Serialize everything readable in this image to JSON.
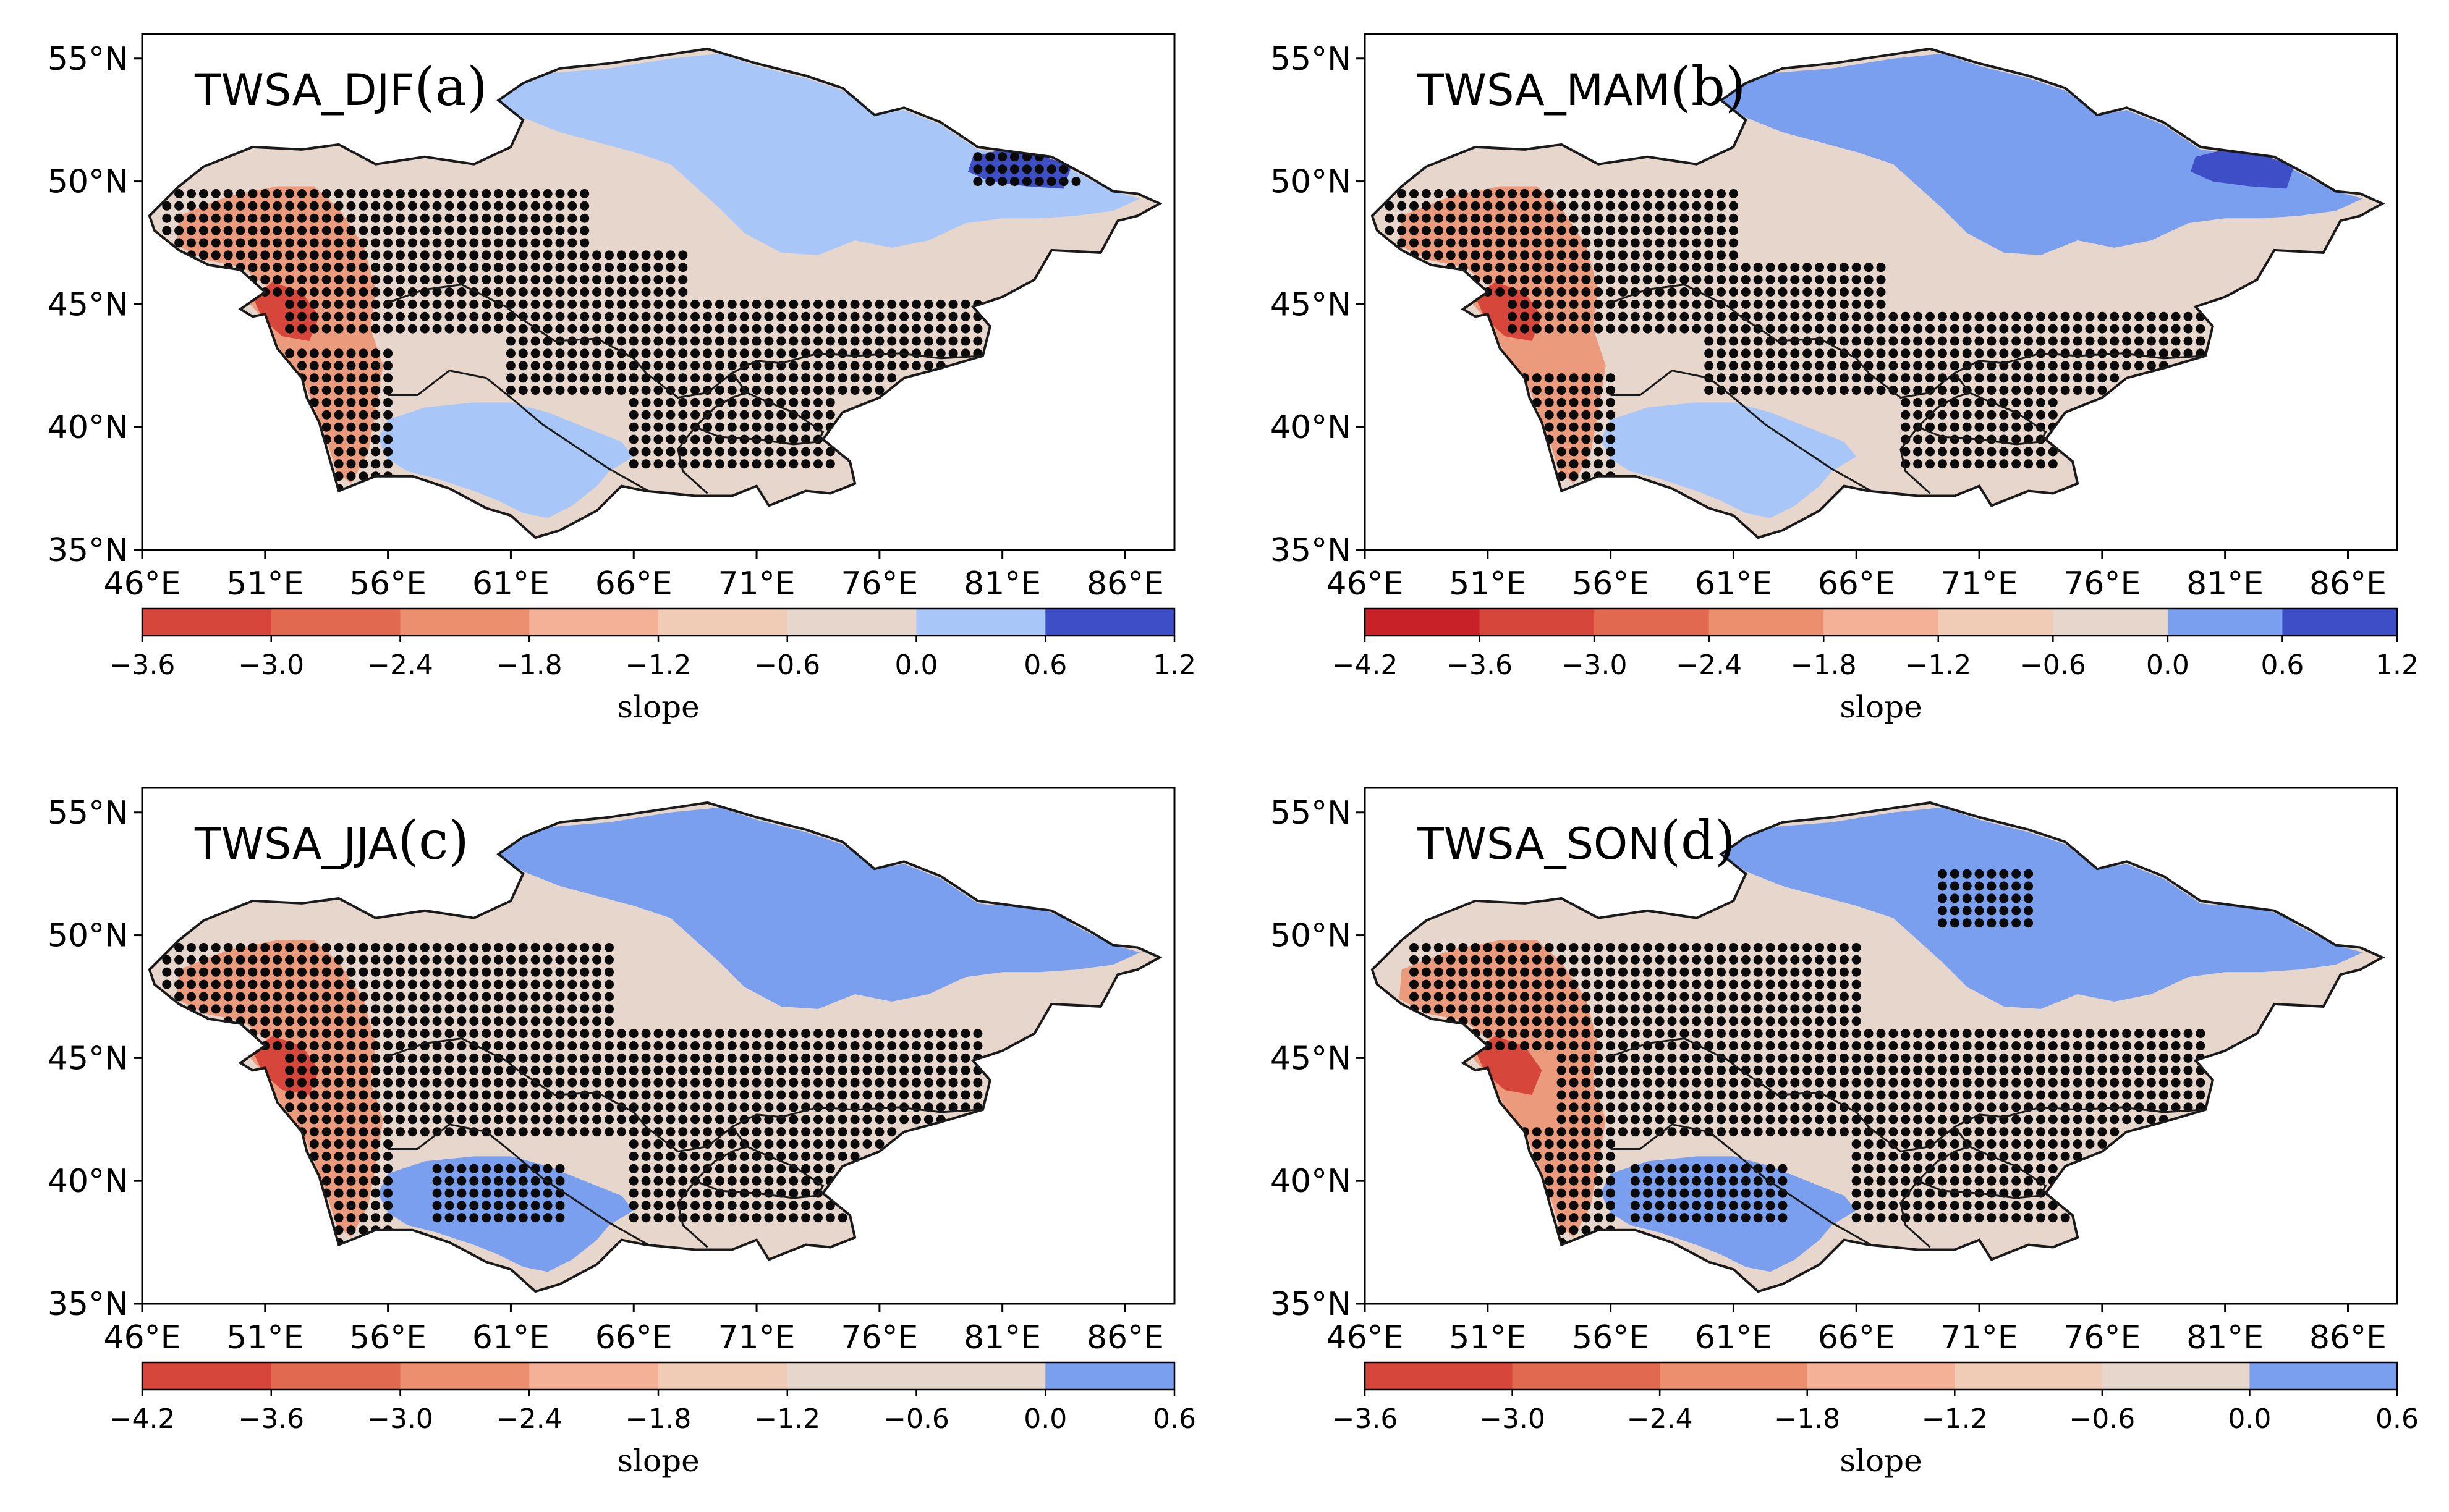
{
  "figure": {
    "type": "map-panels",
    "map_extent": {
      "lon": [
        46,
        88
      ],
      "lat": [
        35,
        56
      ]
    },
    "lon_ticks": [
      "46°E",
      "51°E",
      "56°E",
      "61°E",
      "66°E",
      "71°E",
      "76°E",
      "81°E",
      "86°E"
    ],
    "lat_ticks": [
      "55°N",
      "50°N",
      "45°N",
      "40°N",
      "35°N"
    ],
    "lon_tick_values": [
      46,
      51,
      56,
      61,
      66,
      71,
      76,
      81,
      86
    ],
    "lat_tick_values": [
      55,
      50,
      45,
      40,
      35
    ],
    "colors": {
      "red_dark": "#c82128",
      "red": "#d6463a",
      "red_mid": "#e0694f",
      "orange": "#ec8f6f",
      "salmon": "#f4b197",
      "peach": "#f0ccb6",
      "beige": "#e7d6cb",
      "blue_light": "#a8c6f7",
      "blue": "#7b9fef",
      "blue_dark": "#3e4ec7",
      "dot": "#0a0a0a",
      "outline": "#1a1a1a"
    }
  },
  "panels": [
    {
      "id": "a",
      "title": "TWSA_DJF",
      "letter": "(a)",
      "colorbar": {
        "ticks": [
          "−3.6",
          "−3.0",
          "−2.4",
          "−1.8",
          "−1.2",
          "−0.6",
          "0.0",
          "0.6",
          "1.2"
        ],
        "label": "slope",
        "colors": [
          "#d6463a",
          "#e0694f",
          "#ec8f6f",
          "#f4b197",
          "#f0ccb6",
          "#e7d6cb",
          "#a8c6f7",
          "#3e4ec7"
        ]
      },
      "region_colors": {
        "north": "#a8c6f7",
        "aral": "#a8c6f7",
        "west": "#d6463a",
        "base": "#e7d6cb",
        "far_east": "#3e4ec7"
      },
      "dots": [
        {
          "lon": [
            47,
            64
          ],
          "lat": [
            45.5,
            49.5
          ]
        },
        {
          "lon": [
            52,
            68
          ],
          "lat": [
            44,
            47
          ]
        },
        {
          "lon": [
            61,
            80
          ],
          "lat": [
            41.5,
            45
          ]
        },
        {
          "lon": [
            66,
            74
          ],
          "lat": [
            38.5,
            43
          ]
        },
        {
          "lon": [
            51,
            56
          ],
          "lat": [
            37.5,
            43
          ]
        },
        {
          "lon": [
            80,
            84
          ],
          "lat": [
            50,
            51
          ]
        }
      ]
    },
    {
      "id": "b",
      "title": "TWSA_MAM",
      "letter": "(b)",
      "colorbar": {
        "ticks": [
          "−4.2",
          "−3.6",
          "−3.0",
          "−2.4",
          "−1.8",
          "−1.2",
          "−0.6",
          "0.0",
          "0.6",
          "1.2"
        ],
        "label": "slope",
        "colors": [
          "#c82128",
          "#d6463a",
          "#e0694f",
          "#ec8f6f",
          "#f4b197",
          "#f0ccb6",
          "#e7d6cb",
          "#7b9fef",
          "#3e4ec7"
        ]
      },
      "region_colors": {
        "north": "#7b9fef",
        "aral": "#a8c6f7",
        "west": "#d6463a",
        "base": "#e7d6cb",
        "far_east": "#3e4ec7"
      },
      "dots": [
        {
          "lon": [
            47,
            61
          ],
          "lat": [
            45.5,
            49.5
          ]
        },
        {
          "lon": [
            52,
            67
          ],
          "lat": [
            44,
            46.5
          ]
        },
        {
          "lon": [
            60,
            80
          ],
          "lat": [
            41.5,
            44.5
          ]
        },
        {
          "lon": [
            68,
            74
          ],
          "lat": [
            38.5,
            41.5
          ]
        },
        {
          "lon": [
            52,
            56
          ],
          "lat": [
            38,
            42
          ]
        }
      ]
    },
    {
      "id": "c",
      "title": "TWSA_JJA",
      "letter": "(c)",
      "colorbar": {
        "ticks": [
          "−4.2",
          "−3.6",
          "−3.0",
          "−2.4",
          "−1.8",
          "−1.2",
          "−0.6",
          "0.0",
          "0.6"
        ],
        "label": "slope",
        "colors": [
          "#d6463a",
          "#e0694f",
          "#ec8f6f",
          "#f4b197",
          "#f0ccb6",
          "#e7d6cb",
          "#e7d6cb",
          "#7b9fef"
        ]
      },
      "region_colors": {
        "north": "#7b9fef",
        "aral": "#7b9fef",
        "west": "#d6463a",
        "base": "#e7d6cb",
        "far_east": "#7b9fef"
      },
      "dots": [
        {
          "lon": [
            47,
            65
          ],
          "lat": [
            45.5,
            49.5
          ]
        },
        {
          "lon": [
            52,
            80
          ],
          "lat": [
            42,
            46
          ]
        },
        {
          "lon": [
            66,
            78
          ],
          "lat": [
            38.5,
            42
          ]
        },
        {
          "lon": [
            52,
            56
          ],
          "lat": [
            37.5,
            42
          ]
        },
        {
          "lon": [
            58,
            63
          ],
          "lat": [
            38.5,
            40.5
          ]
        }
      ]
    },
    {
      "id": "d",
      "title": "TWSA_SON",
      "letter": "(d)",
      "colorbar": {
        "ticks": [
          "−3.6",
          "−3.0",
          "−2.4",
          "−1.8",
          "−1.2",
          "−0.6",
          "0.0",
          "0.6"
        ],
        "label": "slope",
        "colors": [
          "#d6463a",
          "#e0694f",
          "#ec8f6f",
          "#f4b197",
          "#f0ccb6",
          "#e7d6cb",
          "#7b9fef"
        ]
      },
      "region_colors": {
        "north": "#7b9fef",
        "aral": "#7b9fef",
        "west": "#d6463a",
        "base": "#e7d6cb",
        "far_east": "#7b9fef"
      },
      "dots": [
        {
          "lon": [
            48,
            66
          ],
          "lat": [
            45.5,
            49.5
          ]
        },
        {
          "lon": [
            54,
            80
          ],
          "lat": [
            42,
            46
          ]
        },
        {
          "lon": [
            66,
            76
          ],
          "lat": [
            38.5,
            42
          ]
        },
        {
          "lon": [
            52,
            56
          ],
          "lat": [
            37.5,
            42
          ]
        },
        {
          "lon": [
            57,
            63
          ],
          "lat": [
            38.5,
            40.5
          ]
        },
        {
          "lon": [
            69.5,
            73
          ],
          "lat": [
            50.5,
            52.5
          ]
        }
      ]
    }
  ]
}
